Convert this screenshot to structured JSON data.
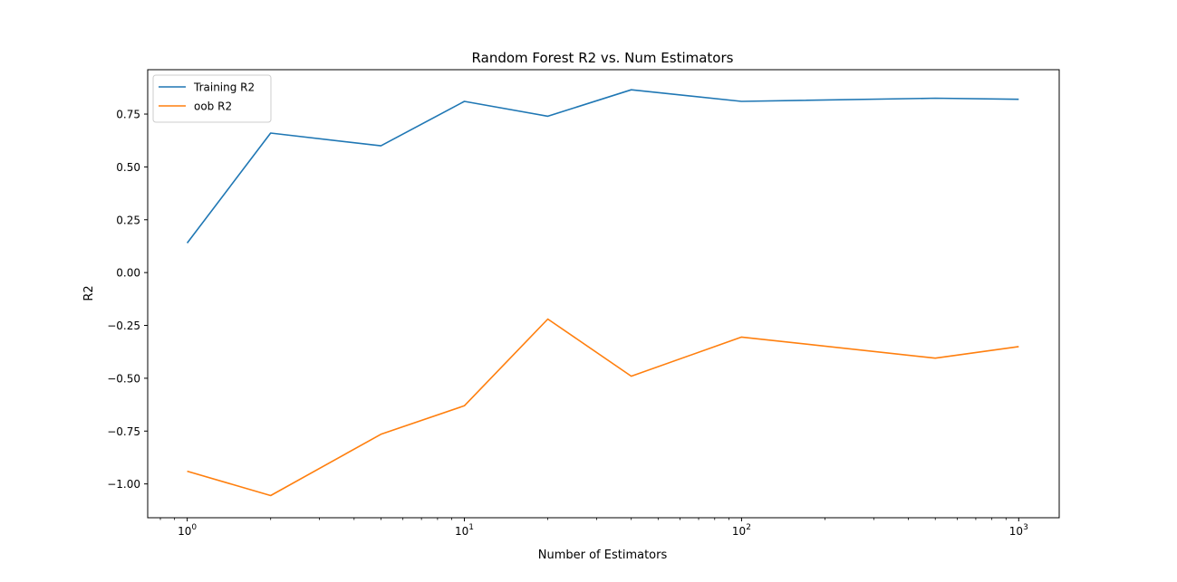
{
  "chart_data": {
    "type": "line",
    "title": "Random Forest R2 vs. Num Estimators",
    "xlabel": "Number of Estimators",
    "ylabel": "R2",
    "xscale": "log",
    "xlim": [
      0.72,
      1400
    ],
    "ylim": [
      -1.16,
      0.96
    ],
    "x": [
      1,
      2,
      5,
      10,
      20,
      40,
      100,
      500,
      1000
    ],
    "x_ticks": [
      {
        "value": 1,
        "base": "10",
        "exp": "0"
      },
      {
        "value": 10,
        "base": "10",
        "exp": "1"
      },
      {
        "value": 100,
        "base": "10",
        "exp": "2"
      },
      {
        "value": 1000,
        "base": "10",
        "exp": "3"
      }
    ],
    "y_ticks": [
      {
        "value": 0.75,
        "label": "0.75"
      },
      {
        "value": 0.5,
        "label": "0.50"
      },
      {
        "value": 0.25,
        "label": "0.25"
      },
      {
        "value": 0.0,
        "label": "0.00"
      },
      {
        "value": -0.25,
        "label": "−0.25"
      },
      {
        "value": -0.5,
        "label": "−0.50"
      },
      {
        "value": -0.75,
        "label": "−0.75"
      },
      {
        "value": -1.0,
        "label": "−1.00"
      }
    ],
    "series": [
      {
        "name": "Training R2",
        "color": "#1f77b4",
        "values": [
          0.14,
          0.66,
          0.6,
          0.81,
          0.74,
          0.865,
          0.81,
          0.825,
          0.82
        ]
      },
      {
        "name": "oob R2",
        "color": "#ff7f0e",
        "values": [
          -0.94,
          -1.055,
          -0.765,
          -0.63,
          -0.22,
          -0.49,
          -0.305,
          -0.405,
          -0.35
        ]
      }
    ],
    "grid": false,
    "legend_position": "top-left"
  }
}
